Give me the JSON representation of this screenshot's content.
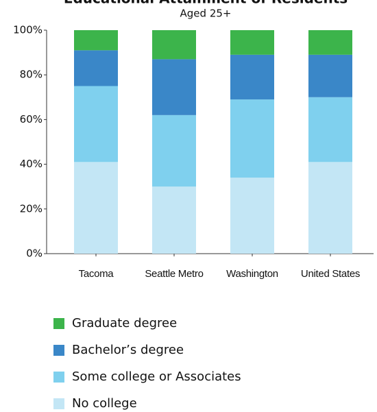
{
  "chart_data": {
    "type": "stacked_bar",
    "title": "Educational Attainment of Residents",
    "subtitle": "Aged 25+",
    "categories": [
      "Tacoma",
      "Seattle Metro",
      "Washington",
      "United States"
    ],
    "series": [
      {
        "name": "No college",
        "color": "#c3e6f5",
        "values": [
          41,
          30,
          34,
          41
        ]
      },
      {
        "name": "Some college or Associates",
        "color": "#7fd0ee",
        "values": [
          34,
          32,
          35,
          29
        ]
      },
      {
        "name": "Bachelor’s degree",
        "color": "#3a87c8",
        "values": [
          16,
          25,
          20,
          19
        ]
      },
      {
        "name": "Graduate degree",
        "color": "#3cb44b",
        "values": [
          9,
          13,
          11,
          11
        ]
      }
    ],
    "ylim": [
      0,
      100
    ],
    "yticks": [
      {
        "value": 0,
        "label": "0%"
      },
      {
        "value": 20,
        "label": "20%"
      },
      {
        "value": 40,
        "label": "40%"
      },
      {
        "value": 60,
        "label": "60%"
      },
      {
        "value": 80,
        "label": "80%"
      },
      {
        "value": 100,
        "label": "100%"
      }
    ]
  }
}
